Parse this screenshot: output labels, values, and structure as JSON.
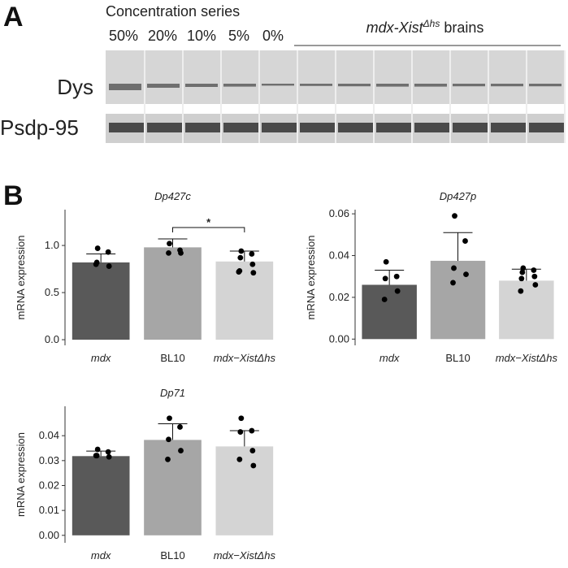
{
  "panel_a": {
    "label": "A",
    "header": "Concentration series",
    "lanes": [
      "50%",
      "20%",
      "10%",
      "5%",
      "0%"
    ],
    "group_label": "mdx-Xist",
    "group_label_sup": "Δhs",
    "group_label_rest": " brains",
    "rows": [
      "Dys",
      "Psdp-95"
    ]
  },
  "panel_b": {
    "label": "B"
  },
  "chart_data": [
    {
      "type": "bar",
      "title": "Dp427c",
      "ylabel": "mRNA expression",
      "categories": [
        "mdx",
        "BL10",
        "mdx−XistΔhs"
      ],
      "colors": [
        "#595959",
        "#a6a6a6",
        "#d4d4d4"
      ],
      "values": [
        0.82,
        0.98,
        0.83
      ],
      "errors": [
        0.09,
        0.09,
        0.11
      ],
      "points": [
        [
          0.97,
          0.93,
          0.82,
          0.78,
          0.8
        ],
        [
          1.02,
          0.95,
          0.92,
          0.92
        ],
        [
          0.94,
          0.91,
          0.87,
          0.8,
          0.73,
          0.71,
          0.72
        ]
      ],
      "ylim": [
        -0.06,
        1.38
      ],
      "yticks": [
        {
          "value": 0,
          "label": "0.0"
        },
        {
          "value": 0.5,
          "label": "0.5"
        },
        {
          "value": 1,
          "label": "1.0"
        }
      ],
      "significance": [
        {
          "between": [
            "BL10",
            "mdx−XistΔhs"
          ],
          "label": "*"
        }
      ]
    },
    {
      "type": "bar",
      "title": "Dp427p",
      "ylabel": "mRNA expression",
      "categories": [
        "mdx",
        "BL10",
        "mdx−XistΔhs"
      ],
      "colors": [
        "#595959",
        "#a6a6a6",
        "#d4d4d4"
      ],
      "values": [
        0.026,
        0.0375,
        0.028
      ],
      "errors": [
        0.007,
        0.0135,
        0.0055
      ],
      "points": [
        [
          0.037,
          0.03,
          0.029,
          0.023,
          0.019
        ],
        [
          0.059,
          0.047,
          0.034,
          0.031,
          0.027
        ],
        [
          0.034,
          0.033,
          0.032,
          0.03,
          0.029,
          0.026,
          0.023
        ]
      ],
      "ylim": [
        -0.003,
        0.062
      ],
      "yticks": [
        {
          "value": 0,
          "label": "0.00"
        },
        {
          "value": 0.02,
          "label": "0.02"
        },
        {
          "value": 0.04,
          "label": "0.04"
        },
        {
          "value": 0.06,
          "label": "0.06"
        }
      ]
    },
    {
      "type": "bar",
      "title": "Dp71",
      "ylabel": "mRNA expression",
      "categories": [
        "mdx",
        "BL10",
        "mdx−XistΔhs"
      ],
      "colors": [
        "#595959",
        "#a6a6a6",
        "#d4d4d4"
      ],
      "values": [
        0.0318,
        0.0383,
        0.0357
      ],
      "errors": [
        0.002,
        0.0065,
        0.0063
      ],
      "points": [
        [
          0.0345,
          0.0335,
          0.032,
          0.0315,
          0.032
        ],
        [
          0.047,
          0.0435,
          0.0385,
          0.034,
          0.0305
        ],
        [
          0.047,
          0.042,
          0.0415,
          0.034,
          0.0305,
          0.028
        ]
      ],
      "ylim": [
        -0.003,
        0.0518
      ],
      "yticks": [
        {
          "value": 0,
          "label": "0.00"
        },
        {
          "value": 0.01,
          "label": "0.01"
        },
        {
          "value": 0.02,
          "label": "0.02"
        },
        {
          "value": 0.03,
          "label": "0.03"
        },
        {
          "value": 0.04,
          "label": "0.04"
        }
      ]
    }
  ]
}
